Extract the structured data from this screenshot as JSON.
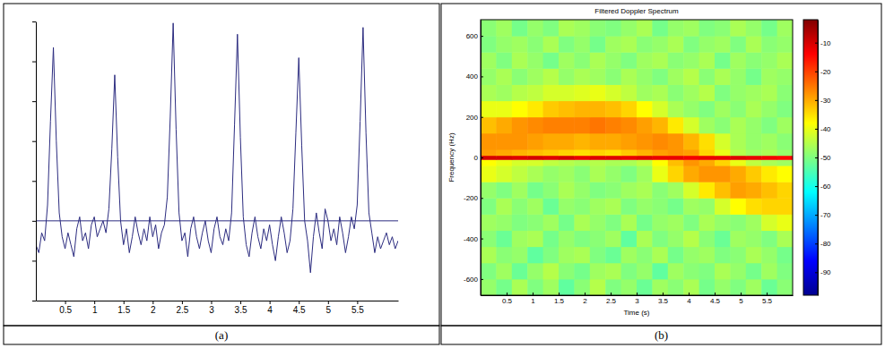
{
  "chart_data": [
    {
      "type": "line",
      "caption": "(a)",
      "x": [
        0,
        0.05,
        0.1,
        0.15,
        0.2,
        0.25,
        0.3,
        0.35,
        0.4,
        0.45,
        0.5,
        0.55,
        0.6,
        0.65,
        0.7,
        0.75,
        0.8,
        0.85,
        0.9,
        0.95,
        1,
        1.05,
        1.1,
        1.15,
        1.2,
        1.25,
        1.3,
        1.35,
        1.4,
        1.45,
        1.5,
        1.55,
        1.6,
        1.65,
        1.7,
        1.75,
        1.8,
        1.85,
        1.9,
        1.95,
        2,
        2.05,
        2.1,
        2.15,
        2.2,
        2.25,
        2.3,
        2.35,
        2.4,
        2.45,
        2.5,
        2.55,
        2.6,
        2.65,
        2.7,
        2.75,
        2.8,
        2.85,
        2.9,
        2.95,
        3,
        3.05,
        3.1,
        3.15,
        3.2,
        3.25,
        3.3,
        3.35,
        3.4,
        3.45,
        3.5,
        3.55,
        3.6,
        3.65,
        3.7,
        3.75,
        3.8,
        3.85,
        3.9,
        3.95,
        4,
        4.05,
        4.1,
        4.15,
        4.2,
        4.25,
        4.3,
        4.35,
        4.4,
        4.45,
        4.5,
        4.55,
        4.6,
        4.65,
        4.7,
        4.75,
        4.8,
        4.85,
        4.9,
        4.95,
        5,
        5.05,
        5.1,
        5.15,
        5.2,
        5.25,
        5.3,
        5.35,
        5.4,
        5.45,
        5.5,
        5.55,
        5.6,
        5.65,
        5.7,
        5.75,
        5.8,
        5.85,
        5.9,
        5.95,
        6,
        6.05,
        6.1,
        6.15,
        6.2
      ],
      "series": [
        {
          "color": "#2c2c80",
          "values": [
            -0.6,
            -0.8,
            -0.3,
            -0.5,
            0.4,
            2.5,
            4.35,
            2.0,
            0.2,
            -0.4,
            -0.7,
            -0.3,
            -0.6,
            -0.9,
            -0.2,
            0.1,
            -0.5,
            -0.3,
            -0.7,
            -0.1,
            0.1,
            -0.4,
            -0.2,
            0.0,
            -0.3,
            0.3,
            1.8,
            3.66,
            1.6,
            0.0,
            -0.6,
            -0.2,
            -0.8,
            -0.4,
            0.1,
            -0.3,
            -0.6,
            -0.2,
            -0.5,
            0.1,
            -0.4,
            -0.1,
            -0.7,
            -0.3,
            -0.1,
            0.6,
            2.6,
            4.96,
            2.3,
            0.2,
            -0.5,
            -0.3,
            -0.9,
            -0.2,
            0.1,
            -0.4,
            -0.7,
            -0.3,
            0.0,
            -0.5,
            -0.8,
            -0.2,
            0.1,
            -0.4,
            -0.6,
            -0.2,
            -0.5,
            0.2,
            2.4,
            4.68,
            2.1,
            0.1,
            -0.6,
            -0.9,
            -0.3,
            0.1,
            -0.4,
            -0.7,
            -0.2,
            -0.5,
            -0.1,
            -0.6,
            -1.0,
            -0.4,
            0.1,
            -0.3,
            -0.8,
            -0.5,
            0.3,
            2.2,
            4.09,
            1.9,
            0.0,
            -0.5,
            -1.3,
            -0.4,
            0.2,
            -0.3,
            -0.7,
            0.3,
            0.0,
            -0.5,
            -0.2,
            -0.6,
            0.1,
            -0.3,
            -0.8,
            -0.4,
            0.1,
            -0.2,
            0.4,
            2.5,
            4.85,
            2.2,
            0.2,
            -0.3,
            -0.8,
            -0.4,
            -0.7,
            -0.5,
            -0.3,
            -0.6,
            -0.4,
            -0.7,
            -0.5
          ]
        }
      ],
      "threshold": 0,
      "xlim": [
        0,
        6.2
      ],
      "ylim": [
        -2,
        5
      ],
      "xticks": [
        0.5,
        1,
        1.5,
        2,
        2.5,
        3,
        3.5,
        4,
        4.5,
        5,
        5.5
      ],
      "yticks": [
        -2,
        -1,
        0,
        1,
        2,
        3,
        4,
        5
      ],
      "tick_labels": "x",
      "grid": false
    },
    {
      "type": "heatmap",
      "caption": "(b)",
      "title": "Filtered Doppler Spectrum",
      "x_label": "Time (s)",
      "y_label": "Frequency (Hz)",
      "x_bins": [
        0,
        0.3,
        0.6,
        0.9,
        1.2,
        1.5,
        1.8,
        2.1,
        2.4,
        2.7,
        3,
        3.3,
        3.6,
        3.9,
        4.2,
        4.5,
        4.8,
        5.1,
        5.4,
        5.7,
        6
      ],
      "y_bins": [
        -680,
        -600,
        -520,
        -440,
        -360,
        -280,
        -200,
        -120,
        -40,
        -10,
        10,
        40,
        120,
        200,
        280,
        360,
        440,
        520,
        600,
        680
      ],
      "cells": [
        [
          -48,
          -51,
          -46,
          -50,
          -47,
          -53,
          -49,
          -45,
          -50,
          -48,
          -52,
          -47,
          -49,
          -46,
          -51,
          -48,
          -50,
          -47,
          -52,
          -49
        ],
        [
          -50,
          -47,
          -52,
          -48,
          -45,
          -49,
          -51,
          -47,
          -46,
          -50,
          -48,
          -53,
          -47,
          -49,
          -50,
          -46,
          -48,
          -51,
          -47,
          -50
        ],
        [
          -46,
          -49,
          -48,
          -53,
          -50,
          -47,
          -46,
          -50,
          -52,
          -47,
          -49,
          -46,
          -51,
          -48,
          -47,
          -50,
          -49,
          -46,
          -48,
          -51
        ],
        [
          -49,
          -52,
          -47,
          -46,
          -51,
          -48,
          -50,
          -49,
          -47,
          -53,
          -46,
          -50,
          -48,
          -45,
          -49,
          -52,
          -47,
          -48,
          -50,
          -46
        ],
        [
          -47,
          -48,
          -50,
          -49,
          -47,
          -51,
          -46,
          -48,
          -50,
          -46,
          -51,
          -48,
          -47,
          -50,
          -46,
          -48,
          -49,
          -47,
          -42,
          -40
        ],
        [
          -50,
          -46,
          -49,
          -47,
          -52,
          -48,
          -49,
          -47,
          -46,
          -50,
          -48,
          -49,
          -51,
          -47,
          -48,
          -42,
          -38,
          -35,
          -34,
          -34
        ],
        [
          -48,
          -50,
          -47,
          -51,
          -49,
          -46,
          -48,
          -50,
          -49,
          -47,
          -46,
          -49,
          -47,
          -42,
          -36,
          -32,
          -29,
          -30,
          -32,
          -34
        ],
        [
          -40,
          -42,
          -44,
          -46,
          -48,
          -47,
          -49,
          -46,
          -48,
          -50,
          -47,
          -40,
          -34,
          -30,
          -28,
          -28,
          -30,
          -33,
          -36,
          -38
        ],
        [
          -38,
          -40,
          -42,
          -42,
          -44,
          -45,
          -46,
          -45,
          -46,
          -46,
          -44,
          -38,
          -32,
          -28,
          -30,
          -34,
          -40,
          -44,
          -46,
          -47
        ],
        [
          -10,
          -10,
          -11,
          -10,
          -11,
          -10,
          -12,
          -11,
          -11,
          -12,
          -11,
          -12,
          -12,
          -13,
          -12,
          -12,
          -11,
          -12,
          -13,
          -14
        ],
        [
          -29,
          -30,
          -31,
          -32,
          -33,
          -34,
          -35,
          -34,
          -35,
          -33,
          -31,
          -29,
          -28,
          -29,
          -34,
          -40,
          -45,
          -47,
          -46,
          -48
        ],
        [
          -28,
          -28,
          -28,
          -29,
          -30,
          -30,
          -31,
          -30,
          -30,
          -29,
          -28,
          -27,
          -28,
          -31,
          -35,
          -42,
          -46,
          -48,
          -47,
          -49
        ],
        [
          -32,
          -30,
          -28,
          -27,
          -26,
          -26,
          -26,
          -25,
          -26,
          -27,
          -29,
          -31,
          -36,
          -42,
          -47,
          -49,
          -46,
          -48,
          -50,
          -47
        ],
        [
          -40,
          -40,
          -38,
          -36,
          -33,
          -32,
          -31,
          -31,
          -32,
          -34,
          -38,
          -42,
          -46,
          -48,
          -50,
          -47,
          -49,
          -46,
          -48,
          -50
        ],
        [
          -46,
          -47,
          -45,
          -44,
          -42,
          -42,
          -41,
          -40,
          -42,
          -44,
          -47,
          -46,
          -49,
          -47,
          -45,
          -50,
          -48,
          -47,
          -46,
          -49
        ],
        [
          -48,
          -46,
          -49,
          -47,
          -45,
          -48,
          -46,
          -47,
          -49,
          -46,
          -48,
          -50,
          -47,
          -45,
          -49,
          -46,
          -48,
          -51,
          -47,
          -48
        ],
        [
          -47,
          -50,
          -46,
          -48,
          -51,
          -47,
          -49,
          -46,
          -48,
          -50,
          -47,
          -46,
          -49,
          -48,
          -46,
          -51,
          -47,
          -49,
          -48,
          -46
        ],
        [
          -50,
          -48,
          -47,
          -49,
          -46,
          -50,
          -48,
          -51,
          -47,
          -46,
          -49,
          -48,
          -46,
          -50,
          -48,
          -47,
          -50,
          -46,
          -49,
          -48
        ],
        [
          -49,
          -47,
          -51,
          -48,
          -50,
          -46,
          -47,
          -49,
          -50,
          -48,
          -46,
          -51,
          -48,
          -47,
          -50,
          -49,
          -46,
          -48,
          -51,
          -47
        ]
      ],
      "xlim": [
        0,
        6
      ],
      "ylim": [
        -680,
        680
      ],
      "xticks": [
        0.5,
        1,
        1.5,
        2,
        2.5,
        3,
        3.5,
        4,
        4.5,
        5,
        5.5
      ],
      "yticks": [
        -600,
        -400,
        -200,
        0,
        200,
        400,
        600
      ],
      "colorbar_range": [
        -98,
        -2
      ],
      "colorbar_ticks": [
        -90,
        -80,
        -70,
        -60,
        -50,
        -40,
        -30,
        -20,
        -10
      ],
      "grid": false
    }
  ]
}
